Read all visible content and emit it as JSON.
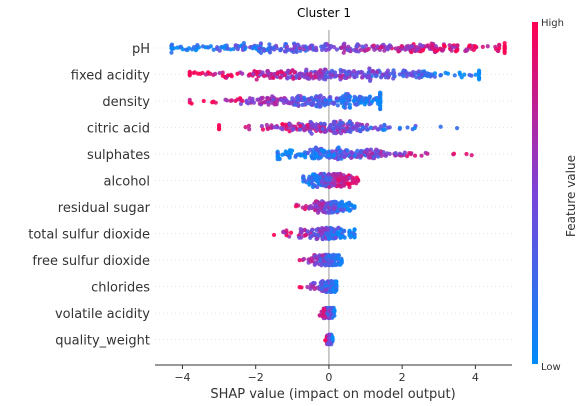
{
  "chart_data": {
    "type": "scatter",
    "subtype": "beeswarm",
    "title": "Cluster 1",
    "xlabel": "SHAP value (impact on model output)",
    "xlim": [
      -4.75,
      5.0
    ],
    "xticks": [
      -4,
      -2,
      0,
      2,
      4
    ],
    "xtick_labels": [
      "−4",
      "−2",
      "0",
      "2",
      "4"
    ],
    "grid": false,
    "zero_line": true,
    "colorbar": {
      "title": "Feature value",
      "high_label": "High",
      "low_label": "Low",
      "low_color": "#008bfb",
      "high_color": "#ff0051"
    },
    "features": [
      {
        "name": "pH",
        "min": -4.3,
        "max": 4.8,
        "spread": 1.1,
        "centers": [
          -1.3,
          2.4
        ],
        "high_side": "right"
      },
      {
        "name": "fixed acidity",
        "min": -3.8,
        "max": 4.1,
        "spread": 1.0,
        "centers": [
          -0.8,
          1.3
        ],
        "high_side": "left"
      },
      {
        "name": "density",
        "min": -3.8,
        "max": 1.4,
        "spread": 0.8,
        "centers": [
          -1.0,
          0.9
        ],
        "high_side": "left"
      },
      {
        "name": "citric acid",
        "min": -3.0,
        "max": 3.5,
        "spread": 0.55,
        "centers": [
          -0.3,
          0.2
        ],
        "high_side": "left"
      },
      {
        "name": "sulphates",
        "min": -1.4,
        "max": 3.9,
        "spread": 0.55,
        "centers": [
          -0.1,
          0.6
        ],
        "high_side": "right"
      },
      {
        "name": "alcohol",
        "min": -0.7,
        "max": 0.8,
        "spread": 0.5,
        "centers": [
          -0.2,
          0.25
        ],
        "high_side": "right"
      },
      {
        "name": "residual sugar",
        "min": -0.9,
        "max": 0.7,
        "spread": 0.35,
        "centers": [
          -0.15,
          0.2
        ],
        "high_side": "left"
      },
      {
        "name": "total sulfur dioxide",
        "min": -1.5,
        "max": 0.7,
        "spread": 0.35,
        "centers": [
          -0.2,
          0.1
        ],
        "high_side": "left"
      },
      {
        "name": "free sulfur dioxide",
        "min": -0.8,
        "max": 0.35,
        "spread": 0.3,
        "centers": [
          -0.1,
          0.05
        ],
        "high_side": "left"
      },
      {
        "name": "chlorides",
        "min": -0.8,
        "max": 0.2,
        "spread": 0.3,
        "centers": [
          -0.1,
          0.05
        ],
        "high_side": "left"
      },
      {
        "name": "volatile acidity",
        "min": -0.25,
        "max": 0.15,
        "spread": 0.25,
        "centers": [
          -0.05,
          0.05
        ],
        "high_side": "left"
      },
      {
        "name": "quality_weight",
        "min": -0.1,
        "max": 0.1,
        "spread": 0.2,
        "centers": [
          0.0,
          0.02
        ],
        "high_side": "left"
      }
    ]
  }
}
